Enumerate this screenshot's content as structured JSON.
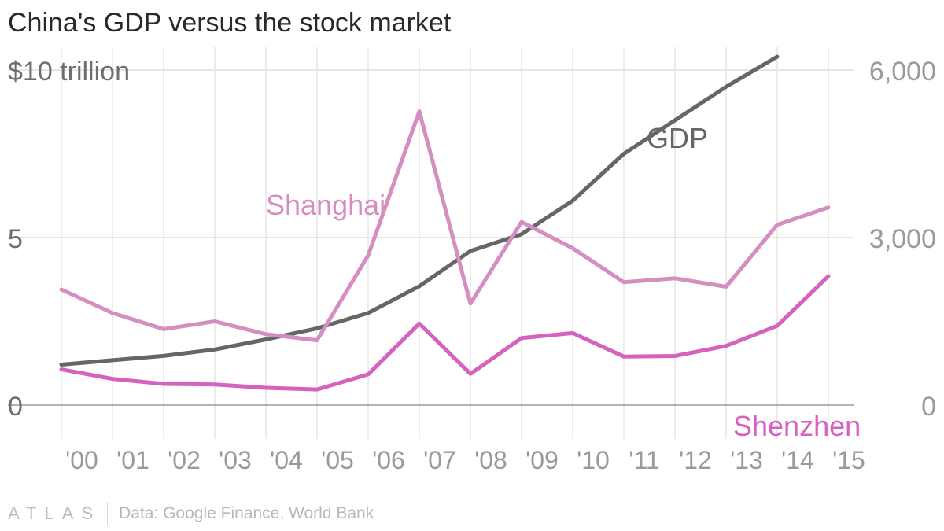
{
  "title": "China's GDP versus the stock market",
  "source": "Data: Google Finance, World Bank",
  "logo": "ATLAS",
  "chart_data": {
    "type": "line",
    "title": "China's GDP versus the stock market",
    "categories": [
      "'00",
      "'01",
      "'02",
      "'03",
      "'04",
      "'05",
      "'06",
      "'07",
      "'08",
      "'09",
      "'10",
      "'11",
      "'12",
      "'13",
      "'14",
      "'15"
    ],
    "left_axis": {
      "ticks": [
        0,
        5,
        10
      ],
      "tick_labels": [
        "0",
        "5",
        "$10 trillion"
      ],
      "ylim": [
        0,
        10
      ]
    },
    "right_axis": {
      "ticks": [
        0,
        3000,
        6000
      ],
      "tick_labels": [
        "0",
        "3,000",
        "6,000"
      ],
      "ylim": [
        0,
        6000
      ]
    },
    "series": [
      {
        "name": "GDP",
        "label": "GDP",
        "axis": "left",
        "color": "#666666",
        "values": [
          1.21,
          1.34,
          1.47,
          1.66,
          1.96,
          2.29,
          2.75,
          3.55,
          4.6,
          5.1,
          6.1,
          7.5,
          8.5,
          9.5,
          10.4,
          null
        ]
      },
      {
        "name": "Shanghai",
        "label": "Shanghai",
        "axis": "right",
        "color": "#d48fc0",
        "values": [
          2070,
          1650,
          1360,
          1500,
          1270,
          1160,
          2680,
          5260,
          1820,
          3280,
          2810,
          2200,
          2270,
          2120,
          3230,
          3540
        ]
      },
      {
        "name": "Shenzhen",
        "label": "Shenzhen",
        "axis": "right",
        "color": "#d562be",
        "values": [
          640,
          470,
          380,
          370,
          310,
          280,
          550,
          1460,
          560,
          1200,
          1290,
          870,
          880,
          1060,
          1420,
          2310
        ]
      }
    ]
  }
}
